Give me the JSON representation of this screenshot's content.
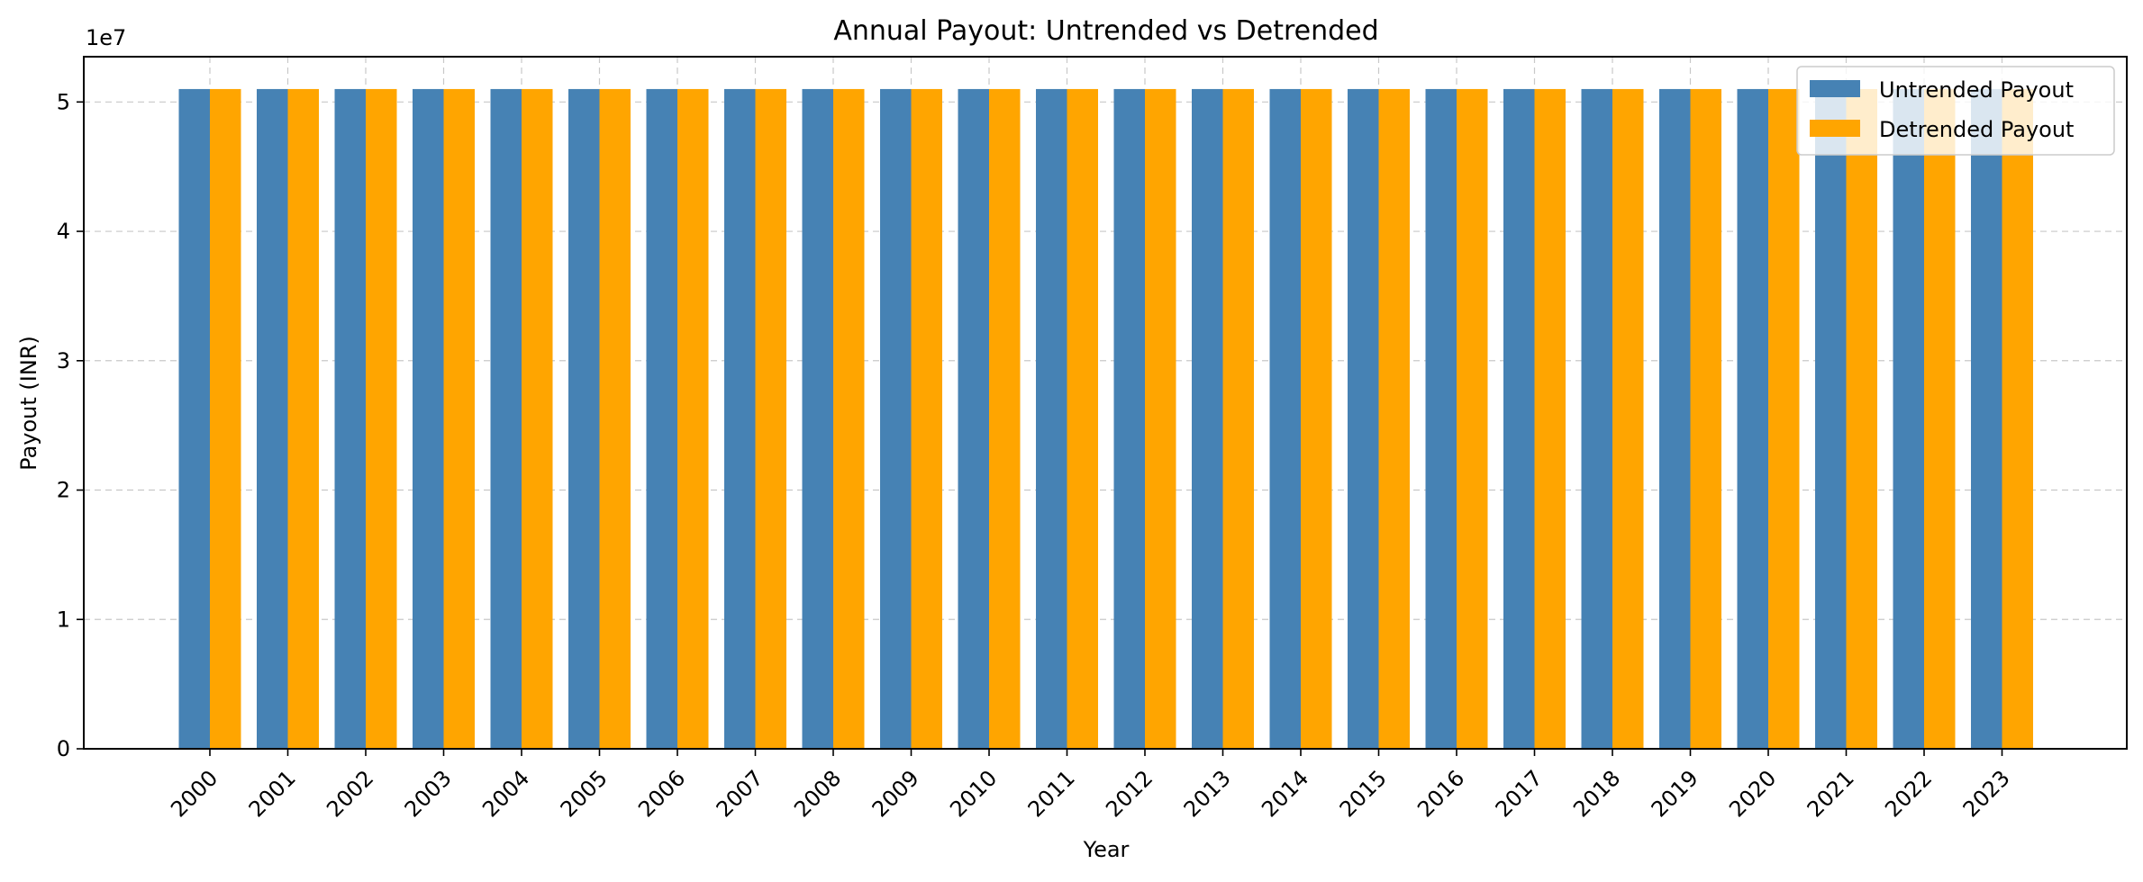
{
  "chart_data": {
    "type": "bar",
    "title": "Annual Payout: Untrended vs Detrended",
    "xlabel": "Year",
    "ylabel": "Payout (INR)",
    "y_offset_text": "1e7",
    "categories": [
      "2000",
      "2001",
      "2002",
      "2003",
      "2004",
      "2005",
      "2006",
      "2007",
      "2008",
      "2009",
      "2010",
      "2011",
      "2012",
      "2013",
      "2014",
      "2015",
      "2016",
      "2017",
      "2018",
      "2019",
      "2020",
      "2021",
      "2022",
      "2023"
    ],
    "ylim": [
      0,
      53500000
    ],
    "yticks": [
      0,
      10000000,
      20000000,
      30000000,
      40000000,
      50000000
    ],
    "ytick_labels": [
      "0",
      "1",
      "2",
      "3",
      "4",
      "5"
    ],
    "series": [
      {
        "name": "Untrended Payout",
        "color": "#4682b4",
        "values": [
          51000000,
          51000000,
          51000000,
          51000000,
          51000000,
          51000000,
          51000000,
          51000000,
          51000000,
          51000000,
          51000000,
          51000000,
          51000000,
          51000000,
          51000000,
          51000000,
          51000000,
          51000000,
          51000000,
          51000000,
          51000000,
          51000000,
          51000000,
          51000000
        ]
      },
      {
        "name": "Detrended Payout",
        "color": "#ffa500",
        "values": [
          51000000,
          51000000,
          51000000,
          51000000,
          51000000,
          51000000,
          51000000,
          51000000,
          51000000,
          51000000,
          51000000,
          51000000,
          51000000,
          51000000,
          51000000,
          51000000,
          51000000,
          51000000,
          51000000,
          51000000,
          51000000,
          51000000,
          51000000,
          51000000
        ]
      }
    ],
    "grid": true,
    "grid_style": "dashed",
    "legend_position": "upper right"
  }
}
